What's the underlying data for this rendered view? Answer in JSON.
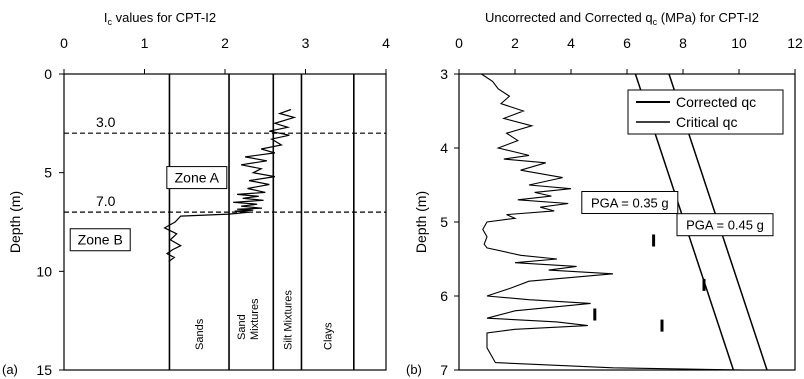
{
  "chart_data": [
    {
      "type": "line",
      "panel_label": "(a)",
      "title_main": "I",
      "title_sub": "c",
      "title_rest": " values for CPT-I2",
      "ylabel": "Depth (m)",
      "xlim": [
        0,
        4
      ],
      "ylim": [
        0,
        15
      ],
      "x_ticks": [
        "0",
        "1",
        "2",
        "3",
        "4"
      ],
      "y_ticks": [
        "0",
        "5",
        "10",
        "15"
      ],
      "boundaries": [
        1.31,
        2.05,
        2.6,
        2.95,
        3.6
      ],
      "soil_classes": [
        "Sands",
        "Sand Mixtures",
        "Silt Mixtures",
        "Clays"
      ],
      "depth_lines": [
        {
          "label": "3.0",
          "depth": 3.0
        },
        {
          "label": "7.0",
          "depth": 7.0
        }
      ],
      "zones": [
        {
          "label": "Zone A",
          "ic": 1.65,
          "depth": 5.3
        },
        {
          "label": "Zone B",
          "ic": 0.45,
          "depth": 8.45
        }
      ],
      "series": [
        {
          "x": [
            2.82,
            2.68,
            2.86,
            2.62,
            2.78,
            2.55,
            2.8,
            2.58,
            2.7,
            2.45,
            2.62,
            2.25,
            2.52,
            2.2,
            2.45,
            2.35,
            2.62,
            2.3,
            2.55,
            2.28,
            2.5,
            2.15,
            2.42,
            2.22,
            2.48,
            2.1,
            2.4,
            2.2,
            2.46,
            2.15,
            2.35,
            2.12,
            2.3,
            2.18,
            2.05,
            1.45,
            1.38,
            1.25,
            1.4,
            1.32,
            1.45,
            1.35,
            1.28,
            1.37,
            1.3
          ],
          "y": [
            1.8,
            2.0,
            2.2,
            2.5,
            2.7,
            2.9,
            3.1,
            3.3,
            3.6,
            3.8,
            4.0,
            4.2,
            4.4,
            4.6,
            4.8,
            5.0,
            5.2,
            5.4,
            5.6,
            5.8,
            6.0,
            6.1,
            6.2,
            6.3,
            6.4,
            6.5,
            6.6,
            6.7,
            6.8,
            6.85,
            6.9,
            6.95,
            7.0,
            7.05,
            7.1,
            7.2,
            7.5,
            7.8,
            8.1,
            8.4,
            8.7,
            8.9,
            9.1,
            9.3,
            9.5
          ]
        }
      ]
    },
    {
      "type": "line",
      "panel_label": "(b)",
      "title_main": "Uncorrected and Corrected q",
      "title_sub": "c",
      "title_rest": " (MPa) for CPT-I2",
      "ylabel": "Depth (m)",
      "xlim": [
        0,
        12
      ],
      "ylim": [
        3,
        7
      ],
      "x_ticks": [
        "0",
        "2",
        "4",
        "6",
        "8",
        "10",
        "12"
      ],
      "y_ticks": [
        "3",
        "4",
        "5",
        "6",
        "7"
      ],
      "legend_entries": [
        "Corrected qc",
        "Critical qc"
      ],
      "legend_position": "top-right",
      "annotations": [
        {
          "text": "PGA = 0.35 g",
          "qc": 6.1,
          "depth": 4.75
        },
        {
          "text": "PGA = 0.45 g",
          "qc": 9.5,
          "depth": 5.05
        }
      ],
      "critical_lines": [
        {
          "name": "PGA = 0.35 g",
          "x": [
            6.3,
            9.8
          ],
          "y": [
            3.0,
            7.0
          ]
        },
        {
          "name": "PGA = 0.45 g",
          "x": [
            7.5,
            11.0
          ],
          "y": [
            3.0,
            7.0
          ]
        }
      ],
      "corrected_points": [
        {
          "qc": 6.95,
          "depth": 5.25
        },
        {
          "qc": 8.75,
          "depth": 5.85
        },
        {
          "qc": 4.85,
          "depth": 6.25
        },
        {
          "qc": 7.25,
          "depth": 6.4
        }
      ],
      "series": [
        {
          "x": [
            0.8,
            1.2,
            1.4,
            1.8,
            1.5,
            2.3,
            1.6,
            2.6,
            1.7,
            2.1,
            1.4,
            2.5,
            1.6,
            3.1,
            2.2,
            3.7,
            2.5,
            4.0,
            2.7,
            3.3,
            2.1,
            3.9,
            2.9,
            3.4,
            1.7,
            2.0,
            1.0,
            0.85,
            1.0,
            0.9,
            1.0,
            2.2,
            3.5,
            2.0,
            4.2,
            3.2,
            5.5,
            2.5,
            1.8,
            1.0,
            2.5,
            4.7,
            2.0,
            1.0,
            3.5,
            4.6,
            2.0,
            1.0,
            1.0,
            1.3,
            5.5,
            10.2
          ],
          "y": [
            3.0,
            3.1,
            3.2,
            3.3,
            3.4,
            3.5,
            3.6,
            3.7,
            3.8,
            3.9,
            4.0,
            4.1,
            4.15,
            4.2,
            4.3,
            4.4,
            4.5,
            4.55,
            4.6,
            4.65,
            4.7,
            4.75,
            4.8,
            4.85,
            4.9,
            4.95,
            5.0,
            5.1,
            5.2,
            5.3,
            5.35,
            5.45,
            5.5,
            5.55,
            5.6,
            5.65,
            5.7,
            5.8,
            5.9,
            6.0,
            6.05,
            6.1,
            6.2,
            6.3,
            6.35,
            6.4,
            6.45,
            6.5,
            6.7,
            6.9,
            6.97,
            7.0
          ]
        }
      ]
    }
  ]
}
